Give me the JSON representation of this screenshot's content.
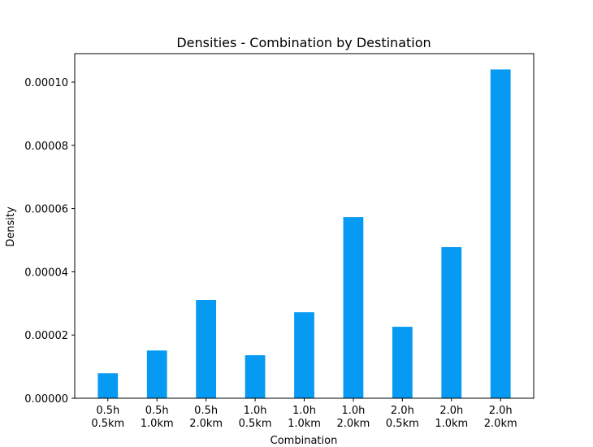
{
  "chart_data": {
    "type": "bar",
    "title": "Densities - Combination by Destination",
    "xlabel": "Combination",
    "ylabel": "Density",
    "categories": [
      [
        "0.5h",
        "0.5km"
      ],
      [
        "0.5h",
        "1.0km"
      ],
      [
        "0.5h",
        "2.0km"
      ],
      [
        "1.0h",
        "0.5km"
      ],
      [
        "1.0h",
        "1.0km"
      ],
      [
        "1.0h",
        "2.0km"
      ],
      [
        "2.0h",
        "0.5km"
      ],
      [
        "2.0h",
        "1.0km"
      ],
      [
        "2.0h",
        "2.0km"
      ]
    ],
    "values": [
      7.9e-06,
      1.51e-05,
      3.11e-05,
      1.36e-05,
      2.72e-05,
      5.73e-05,
      2.26e-05,
      4.78e-05,
      0.000104
    ],
    "ylim": [
      0,
      0.000109
    ],
    "yticks": [
      0,
      2e-05,
      4e-05,
      6e-05,
      8e-05,
      0.0001
    ],
    "ytick_labels": [
      "0.00000",
      "0.00002",
      "0.00004",
      "0.00006",
      "0.00008",
      "0.00010"
    ],
    "bar_color": "#069af3",
    "grid": false,
    "legend": "none"
  }
}
